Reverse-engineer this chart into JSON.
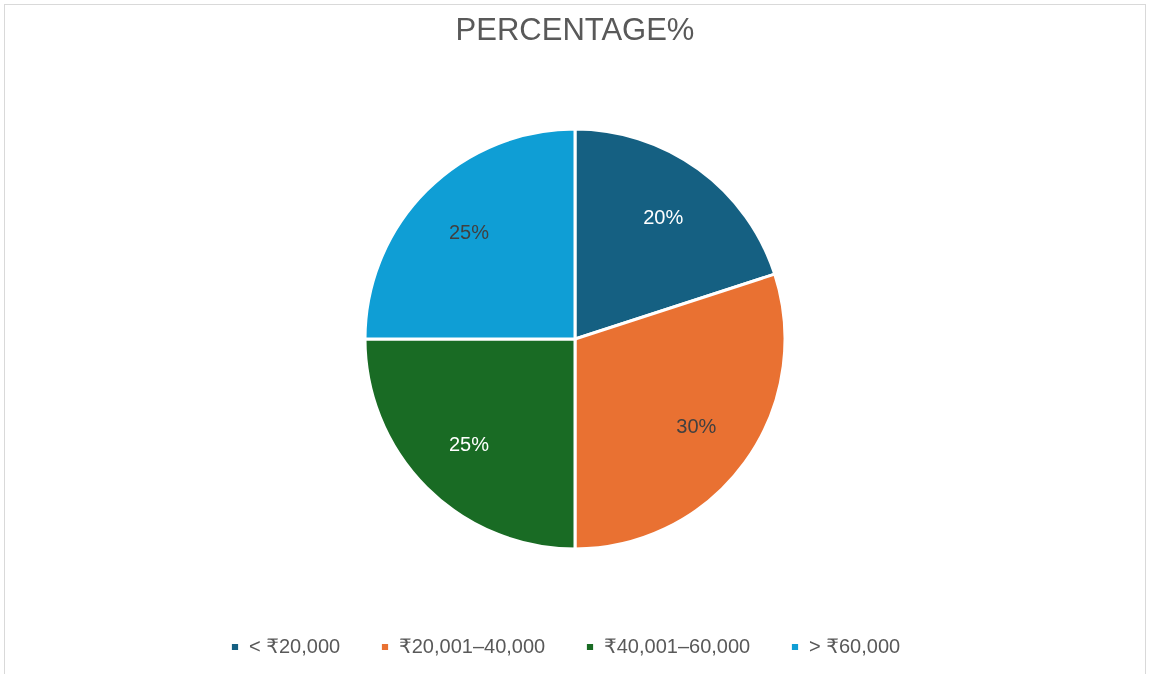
{
  "chart_data": {
    "type": "pie",
    "title": "PERCENTAGE%",
    "categories": [
      "< ₹20,000",
      "₹20,001–40,000",
      "₹40,001–60,000",
      "> ₹60,000"
    ],
    "values": [
      20,
      30,
      25,
      25
    ],
    "colors": [
      "#156082",
      "#e97132",
      "#196b24",
      "#0f9ed5"
    ],
    "value_labels": [
      "20%",
      "30%",
      "25%",
      "25%"
    ],
    "legend": "bottom"
  }
}
